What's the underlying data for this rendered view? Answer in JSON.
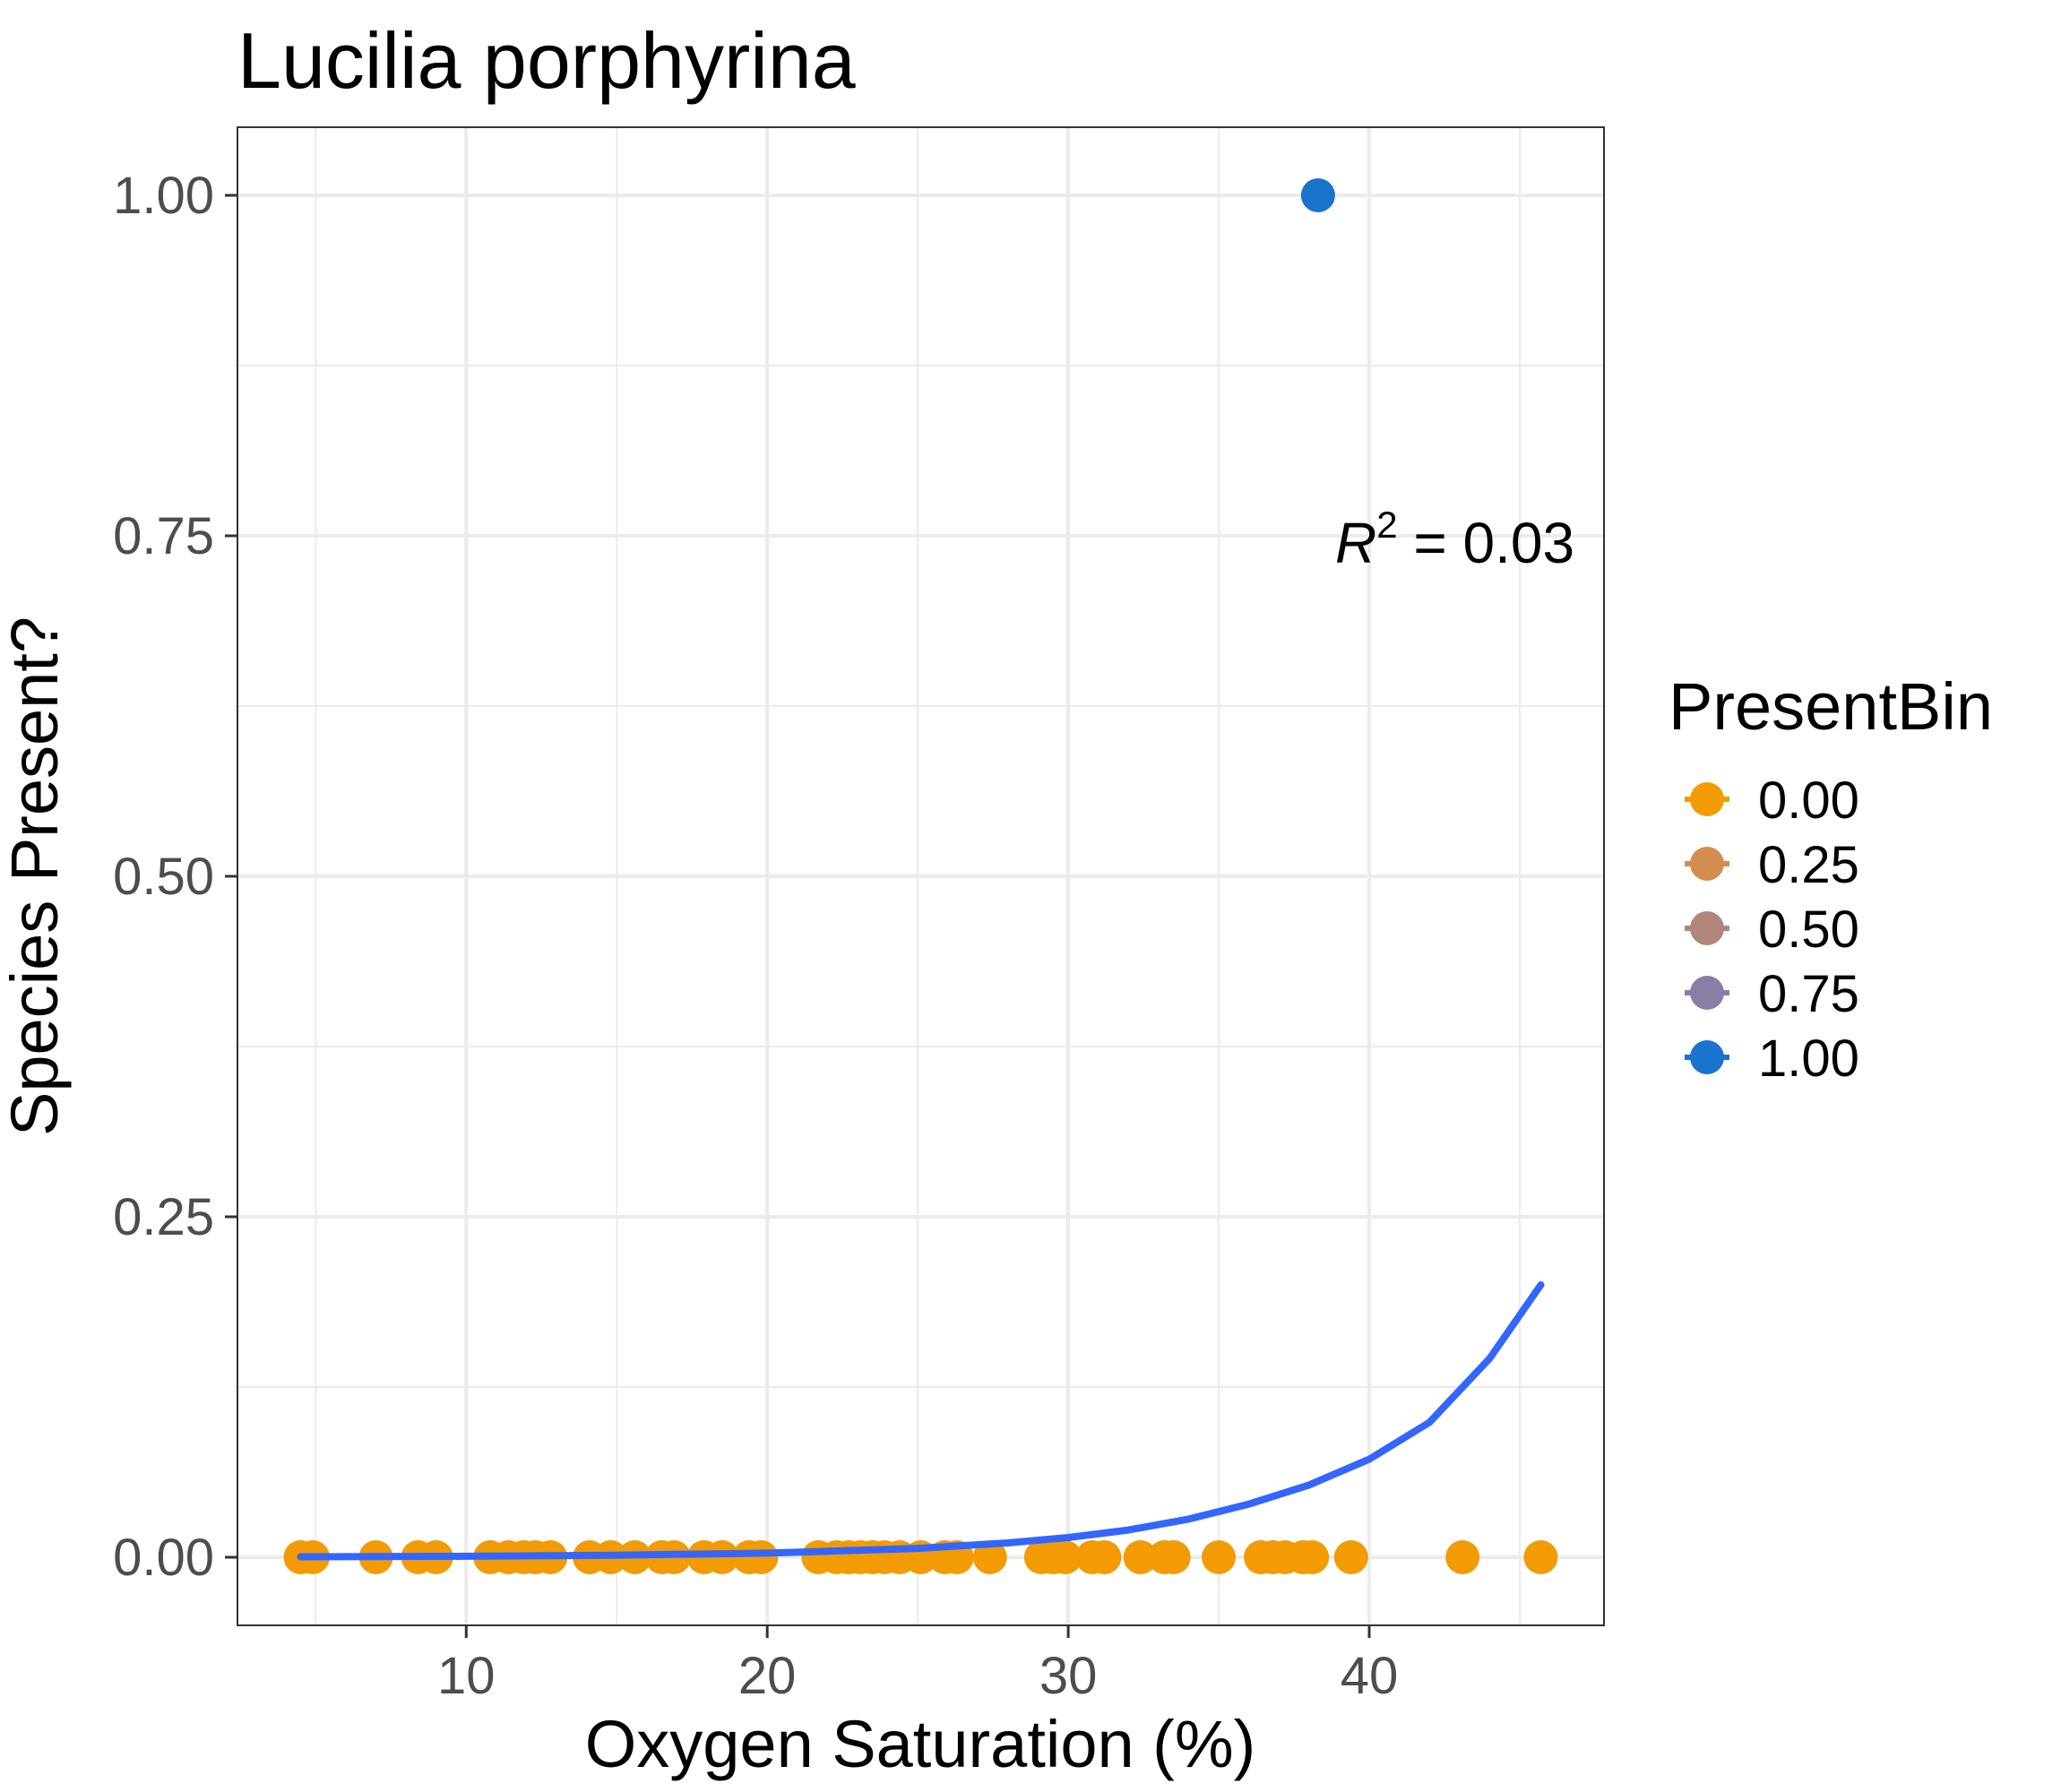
{
  "chart_data": {
    "type": "scatter",
    "title": "Lucilia porphyrina",
    "xlabel": "Oxygen Saturation (%)",
    "ylabel": "Species Present?",
    "xlim": [
      2.4,
      47.8
    ],
    "ylim": [
      -0.05,
      1.05
    ],
    "x_ticks": [
      10,
      20,
      30,
      40
    ],
    "y_ticks": [
      0.0,
      0.25,
      0.5,
      0.75,
      1.0
    ],
    "x_tick_labels": [
      "10",
      "20",
      "30",
      "40"
    ],
    "y_tick_labels": [
      "0.00",
      "0.25",
      "0.50",
      "0.75",
      "1.00"
    ],
    "grid": true,
    "legend_placement": "right",
    "legend": {
      "title": "PresentBin",
      "entries": [
        {
          "label": "0.00",
          "value": 0.0,
          "color": "#F29B05"
        },
        {
          "label": "0.25",
          "value": 0.25,
          "color": "#D28E50"
        },
        {
          "label": "0.50",
          "value": 0.5,
          "color": "#B1867C"
        },
        {
          "label": "0.75",
          "value": 0.75,
          "color": "#8A7EA6"
        },
        {
          "label": "1.00",
          "value": 1.0,
          "color": "#1874CD"
        }
      ]
    },
    "points": [
      {
        "x": 4.5,
        "y": 0
      },
      {
        "x": 4.9,
        "y": 0
      },
      {
        "x": 7.0,
        "y": 0
      },
      {
        "x": 8.4,
        "y": 0
      },
      {
        "x": 9.0,
        "y": 0
      },
      {
        "x": 10.8,
        "y": 0
      },
      {
        "x": 11.4,
        "y": 0
      },
      {
        "x": 11.9,
        "y": 0
      },
      {
        "x": 12.3,
        "y": 0
      },
      {
        "x": 12.8,
        "y": 0
      },
      {
        "x": 14.1,
        "y": 0
      },
      {
        "x": 14.8,
        "y": 0
      },
      {
        "x": 15.6,
        "y": 0
      },
      {
        "x": 16.5,
        "y": 0
      },
      {
        "x": 16.9,
        "y": 0
      },
      {
        "x": 17.9,
        "y": 0
      },
      {
        "x": 18.5,
        "y": 0
      },
      {
        "x": 19.4,
        "y": 0
      },
      {
        "x": 19.8,
        "y": 0
      },
      {
        "x": 21.7,
        "y": 0
      },
      {
        "x": 22.3,
        "y": 0
      },
      {
        "x": 22.7,
        "y": 0
      },
      {
        "x": 23.1,
        "y": 0
      },
      {
        "x": 23.5,
        "y": 0
      },
      {
        "x": 23.9,
        "y": 0
      },
      {
        "x": 24.4,
        "y": 0
      },
      {
        "x": 25.1,
        "y": 0
      },
      {
        "x": 25.9,
        "y": 0
      },
      {
        "x": 26.3,
        "y": 0
      },
      {
        "x": 27.4,
        "y": 0
      },
      {
        "x": 29.1,
        "y": 0
      },
      {
        "x": 29.5,
        "y": 0
      },
      {
        "x": 29.9,
        "y": 0
      },
      {
        "x": 30.8,
        "y": 0
      },
      {
        "x": 31.2,
        "y": 0
      },
      {
        "x": 32.4,
        "y": 0
      },
      {
        "x": 33.2,
        "y": 0
      },
      {
        "x": 33.5,
        "y": 0
      },
      {
        "x": 35.0,
        "y": 0
      },
      {
        "x": 36.4,
        "y": 0
      },
      {
        "x": 36.8,
        "y": 0
      },
      {
        "x": 37.2,
        "y": 0
      },
      {
        "x": 37.8,
        "y": 0
      },
      {
        "x": 38.1,
        "y": 0
      },
      {
        "x": 39.4,
        "y": 0
      },
      {
        "x": 43.1,
        "y": 0
      },
      {
        "x": 45.7,
        "y": 0
      },
      {
        "x": 38.3,
        "y": 1
      }
    ],
    "fit_curve": {
      "type": "logistic",
      "color": "#3366FF",
      "points": [
        {
          "x": 4.5,
          "y": 0.0003
        },
        {
          "x": 10,
          "y": 0.0007
        },
        {
          "x": 15,
          "y": 0.0015
        },
        {
          "x": 20,
          "y": 0.003
        },
        {
          "x": 25,
          "y": 0.0065
        },
        {
          "x": 28,
          "y": 0.0105
        },
        {
          "x": 30,
          "y": 0.0145
        },
        {
          "x": 32,
          "y": 0.02
        },
        {
          "x": 34,
          "y": 0.028
        },
        {
          "x": 36,
          "y": 0.039
        },
        {
          "x": 38,
          "y": 0.053
        },
        {
          "x": 40,
          "y": 0.072
        },
        {
          "x": 42,
          "y": 0.099
        },
        {
          "x": 44,
          "y": 0.146
        },
        {
          "x": 45.7,
          "y": 0.2
        }
      ]
    },
    "annotation": {
      "r_label": "R",
      "superscript": "2",
      "text": " = 0.03",
      "x": 38.9,
      "y": 0.73
    }
  }
}
